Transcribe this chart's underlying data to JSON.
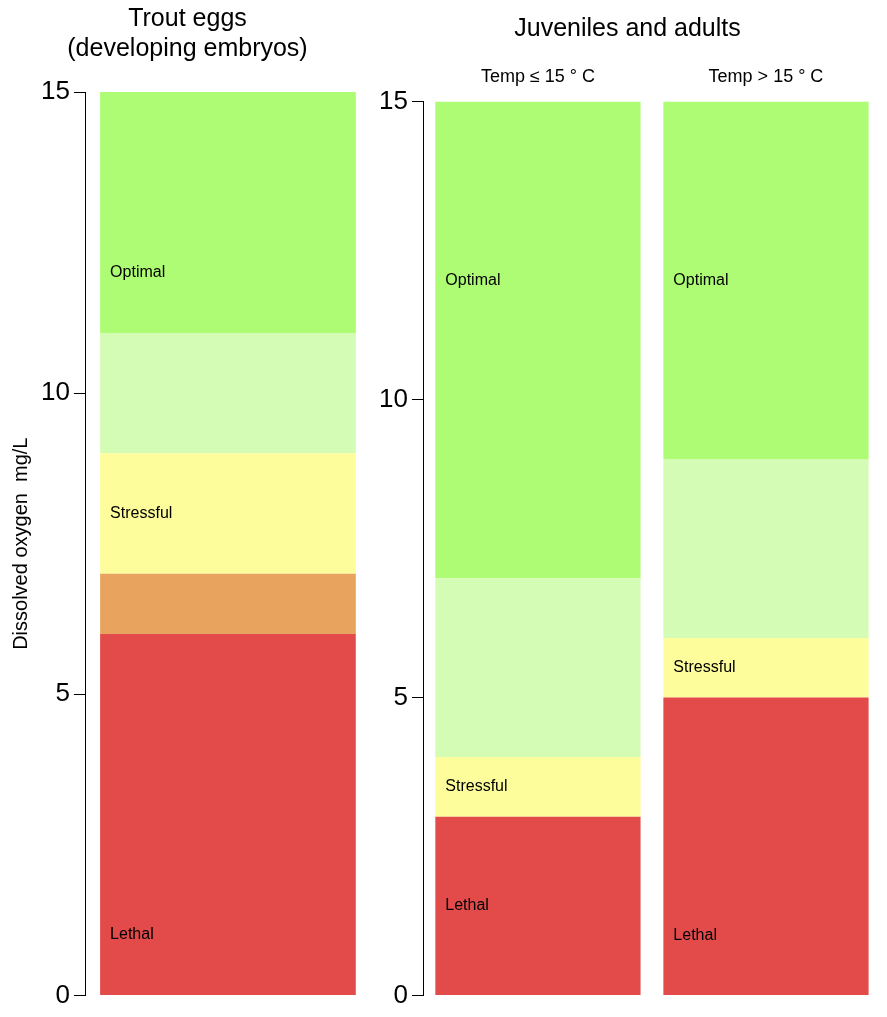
{
  "chart_data": [
    {
      "type": "bar",
      "stacked": true,
      "title": "Trout eggs\n(developing embryos)",
      "ylabel": "Dissolved oxygen  mg/L",
      "categories": [
        null
      ],
      "ylim": [
        0,
        15
      ],
      "yticks": [
        0,
        5,
        10,
        15
      ],
      "tick_labels": "y",
      "grid": false,
      "legend": false,
      "series": [
        {
          "name": "Lethal",
          "color": "#e34b4b",
          "values": [
            6
          ]
        },
        {
          "color": "#e8a35f",
          "values": [
            1
          ]
        },
        {
          "name": "Stressful",
          "color": "#fdfd9b",
          "values": [
            2
          ]
        },
        {
          "color": "#d5fcb4",
          "values": [
            2
          ]
        },
        {
          "name": "Optimal",
          "color": "#adfc74",
          "values": [
            4
          ]
        }
      ]
    },
    {
      "type": "bar",
      "stacked": true,
      "title": "Juveniles and adults",
      "categories": [
        "Temp ≤ 15 ° C",
        "Temp > 15 ° C"
      ],
      "ylim": [
        0,
        15
      ],
      "yticks": [
        0,
        5,
        10,
        15
      ],
      "grid": false,
      "legend": false,
      "series": [
        {
          "name": "Lethal",
          "color": "#e34b4b",
          "values": [
            3,
            5
          ]
        },
        {
          "name": "Stressful",
          "color": "#fdfd9b",
          "values": [
            1,
            1
          ]
        },
        {
          "color": "#d5fcb4",
          "values": [
            3,
            3
          ]
        },
        {
          "name": "Optimal",
          "color": "#adfc74",
          "values": [
            8,
            6
          ]
        }
      ]
    }
  ]
}
